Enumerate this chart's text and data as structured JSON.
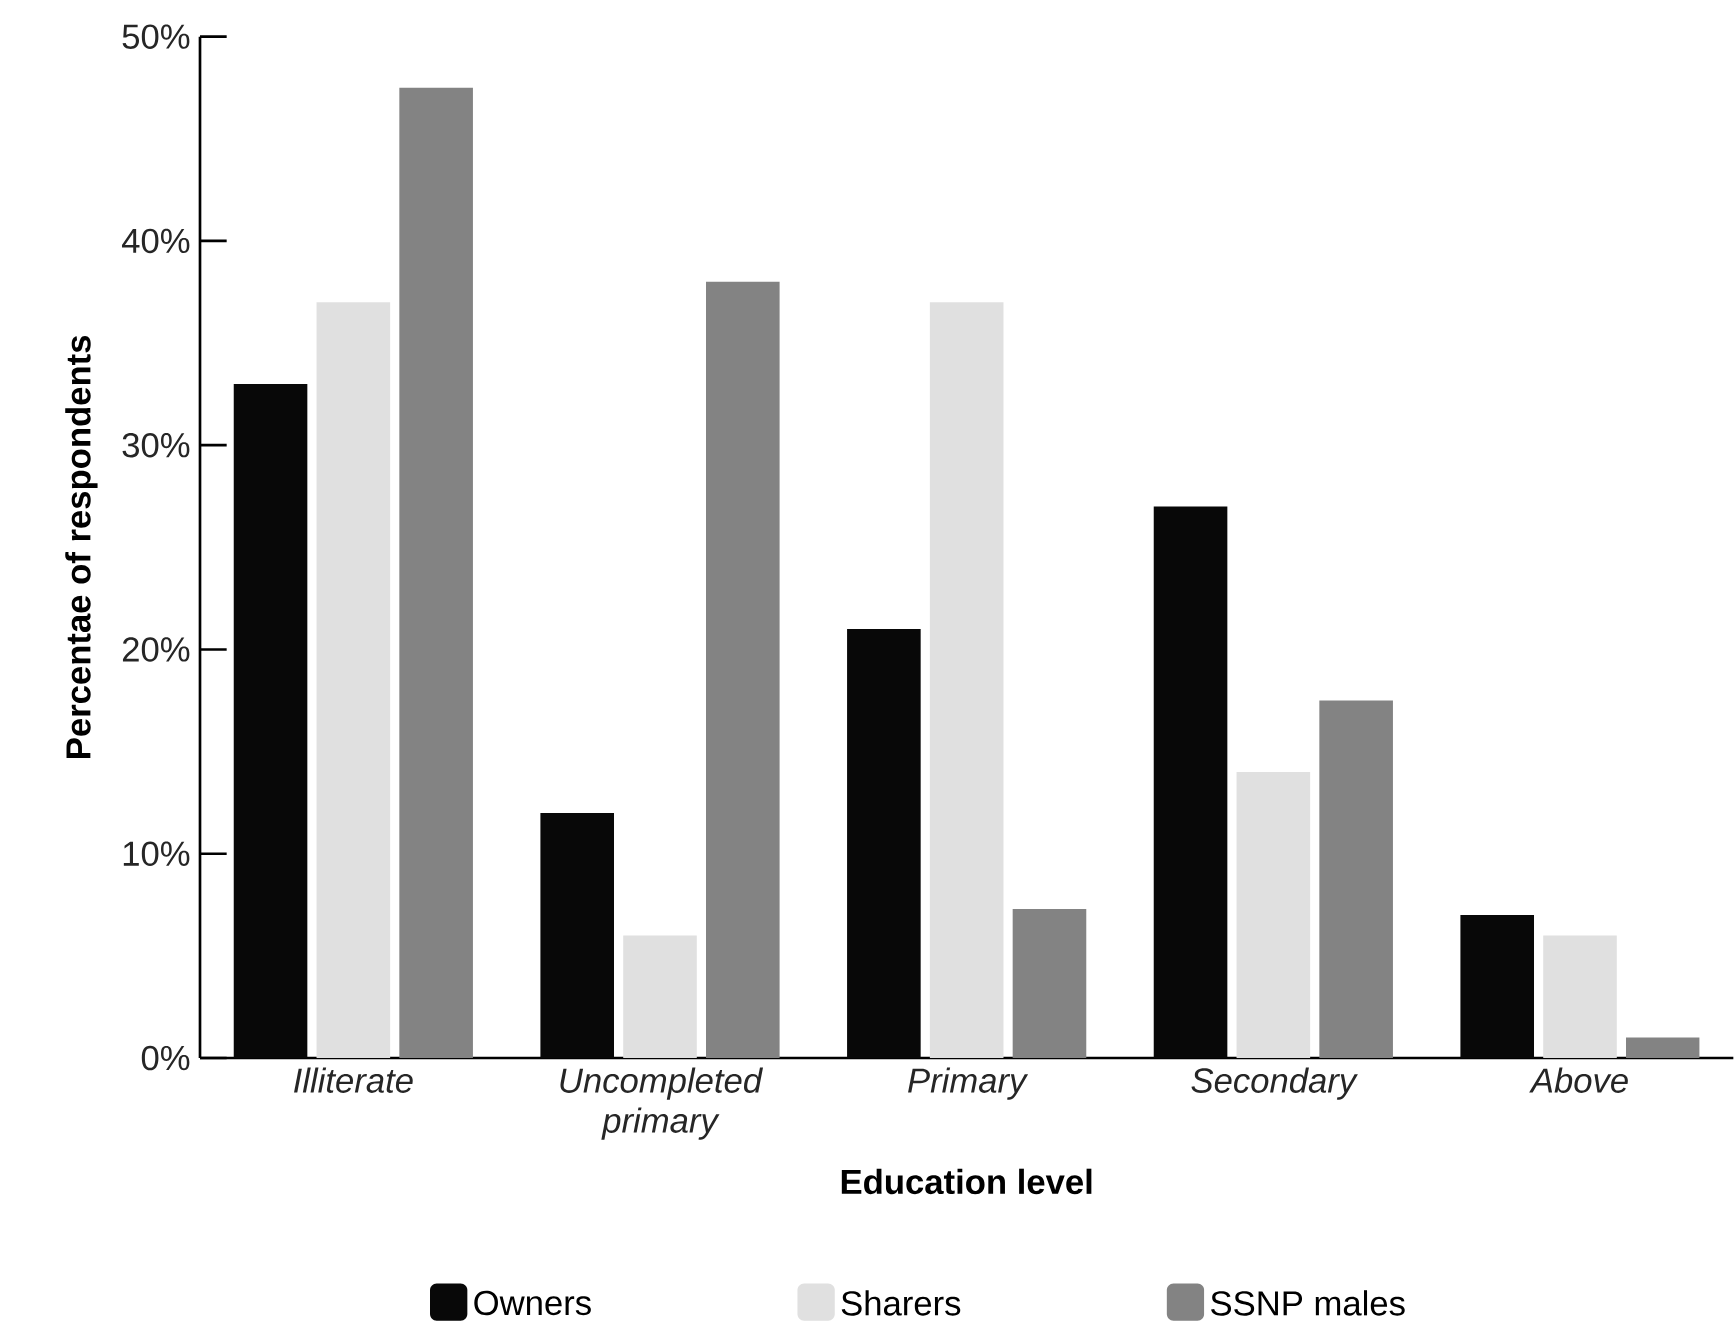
{
  "chart_data": {
    "type": "bar",
    "xlabel": "Education level",
    "ylabel": "Percentae of respondents",
    "categories": [
      "Illiterate",
      "Uncompleted primary",
      "Primary",
      "Secondary",
      "Above"
    ],
    "series": [
      {
        "name": "Owners",
        "color": "#080808",
        "values": [
          33,
          12,
          21,
          27,
          7
        ]
      },
      {
        "name": "Sharers",
        "color": "#e0e0e0",
        "values": [
          37,
          6,
          37,
          14,
          6
        ]
      },
      {
        "name": "SSNP males",
        "color": "#838383",
        "values": [
          47.5,
          38,
          7.3,
          17.5,
          1
        ]
      }
    ],
    "ylim": [
      0,
      50
    ],
    "yticks": [
      {
        "value": 0,
        "label": "0%"
      },
      {
        "value": 10,
        "label": "10%"
      },
      {
        "value": 20,
        "label": "20%"
      },
      {
        "value": 30,
        "label": "30%"
      },
      {
        "value": 40,
        "label": "40%"
      },
      {
        "value": 50,
        "label": "50%"
      }
    ],
    "legend": "bottom"
  }
}
